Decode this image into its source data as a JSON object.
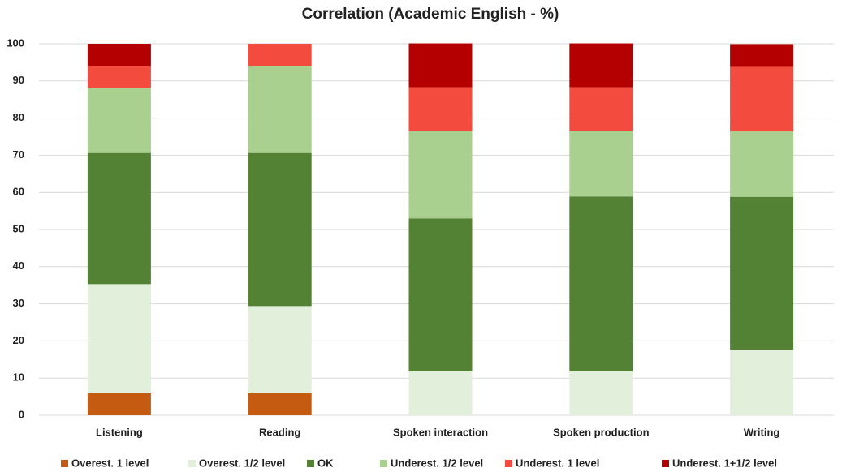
{
  "chart_data": {
    "type": "stacked_bar",
    "title": "Correlation (Academic English - %)",
    "categories": [
      "Listening",
      "Reading",
      "Spoken interaction",
      "Spoken production",
      "Writing"
    ],
    "series": [
      {
        "name": "Overest. 1 level",
        "color": "#c55a11",
        "values": [
          5.9,
          5.9,
          0,
          0,
          0
        ]
      },
      {
        "name": "Overest. 1/2 level",
        "color": "#e2efda",
        "values": [
          29.4,
          23.5,
          11.8,
          11.8,
          17.6
        ]
      },
      {
        "name": "OK",
        "color": "#548235",
        "values": [
          35.3,
          41.2,
          41.2,
          47.1,
          41.2
        ]
      },
      {
        "name": "Underest. 1/2 level",
        "color": "#a9d08e",
        "values": [
          17.6,
          23.5,
          23.5,
          17.6,
          17.6
        ]
      },
      {
        "name": "Underest. 1 level",
        "color": "#f44b3f",
        "values": [
          5.9,
          5.9,
          11.8,
          11.8,
          17.6
        ]
      },
      {
        "name": "Underest. 1+1/2 level",
        "color": "#b40000",
        "values": [
          5.9,
          0,
          11.8,
          11.8,
          5.9
        ]
      }
    ],
    "ylim": [
      0,
      100
    ],
    "yticks": [
      0,
      10,
      20,
      30,
      40,
      50,
      60,
      70,
      80,
      90,
      100
    ],
    "grid": true
  }
}
